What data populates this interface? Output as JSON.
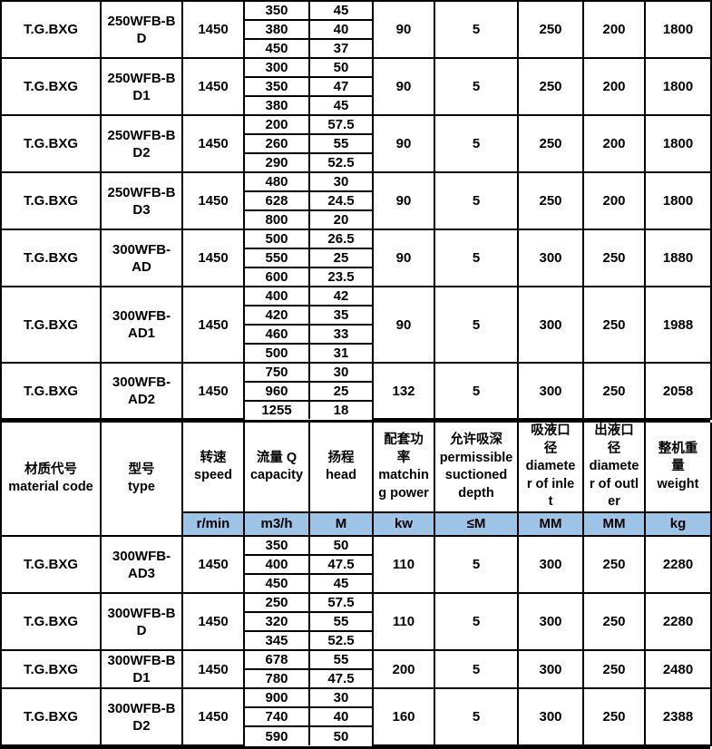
{
  "colors": {
    "unit_row_bg": "#9dc3e6",
    "border": "#000000",
    "cell_bg": "#ffffff",
    "text": "#000000"
  },
  "columns": [
    {
      "key": "material_code",
      "label": "材质代号\nmaterial code",
      "unit": null
    },
    {
      "key": "type",
      "label": "型号\ntype",
      "unit": null
    },
    {
      "key": "speed",
      "label": "转速\nspeed",
      "unit": "r/min"
    },
    {
      "key": "capacity",
      "label": "流量 Q\ncapacity",
      "unit": "m3/h"
    },
    {
      "key": "head",
      "label": "扬程\nhead",
      "unit": "M"
    },
    {
      "key": "power",
      "label": "配套功\n率\nmatchin\ng power",
      "unit": "kw"
    },
    {
      "key": "depth",
      "label": "允许吸深\npermissible\nsuctioned\ndepth",
      "unit": "≤M"
    },
    {
      "key": "inlet",
      "label": "吸液口\n径\ndiamete\nr of inle\nt",
      "unit": "MM"
    },
    {
      "key": "outlet",
      "label": "出液口\n径\ndiamete\nr of outl\ner",
      "unit": "MM"
    },
    {
      "key": "weight",
      "label": "整机重\n量\nweight",
      "unit": "kg"
    }
  ],
  "upper_section": {
    "groups": [
      {
        "material_code": "T.G.BXG",
        "type": "250WFB-B\nD",
        "speed": "1450",
        "points": [
          [
            "350",
            "45"
          ],
          [
            "380",
            "40"
          ],
          [
            "450",
            "37"
          ]
        ],
        "power": "90",
        "depth": "5",
        "inlet": "250",
        "outlet": "200",
        "weight": "1800"
      },
      {
        "material_code": "T.G.BXG",
        "type": "250WFB-B\nD1",
        "speed": "1450",
        "points": [
          [
            "300",
            "50"
          ],
          [
            "350",
            "47"
          ],
          [
            "380",
            "45"
          ]
        ],
        "power": "90",
        "depth": "5",
        "inlet": "250",
        "outlet": "200",
        "weight": "1800"
      },
      {
        "material_code": "T.G.BXG",
        "type": "250WFB-B\nD2",
        "speed": "1450",
        "points": [
          [
            "200",
            "57.5"
          ],
          [
            "260",
            "55"
          ],
          [
            "290",
            "52.5"
          ]
        ],
        "power": "90",
        "depth": "5",
        "inlet": "250",
        "outlet": "200",
        "weight": "1800"
      },
      {
        "material_code": "T.G.BXG",
        "type": "250WFB-B\nD3",
        "speed": "1450",
        "points": [
          [
            "480",
            "30"
          ],
          [
            "628",
            "24.5"
          ],
          [
            "800",
            "20"
          ]
        ],
        "power": "90",
        "depth": "5",
        "inlet": "250",
        "outlet": "200",
        "weight": "1800"
      },
      {
        "material_code": "T.G.BXG",
        "type": "300WFB-\nAD",
        "speed": "1450",
        "points": [
          [
            "500",
            "26.5"
          ],
          [
            "550",
            "25"
          ],
          [
            "600",
            "23.5"
          ]
        ],
        "power": "90",
        "depth": "5",
        "inlet": "300",
        "outlet": "250",
        "weight": "1880"
      },
      {
        "material_code": "T.G.BXG",
        "type": "300WFB-\nAD1",
        "speed": "1450",
        "points": [
          [
            "400",
            "42"
          ],
          [
            "420",
            "35"
          ],
          [
            "460",
            "33"
          ],
          [
            "500",
            "31"
          ]
        ],
        "power": "90",
        "depth": "5",
        "inlet": "300",
        "outlet": "250",
        "weight": "1988"
      },
      {
        "material_code": "T.G.BXG",
        "type": "300WFB-\nAD2",
        "speed": "1450",
        "points": [
          [
            "750",
            "30"
          ],
          [
            "960",
            "25"
          ],
          [
            "1255",
            "18"
          ]
        ],
        "power": "132",
        "depth": "5",
        "inlet": "300",
        "outlet": "250",
        "weight": "2058"
      }
    ]
  },
  "lower_section": {
    "groups": [
      {
        "material_code": "T.G.BXG",
        "type": "300WFB-\nAD3",
        "speed": "1450",
        "points": [
          [
            "350",
            "50"
          ],
          [
            "400",
            "47.5"
          ],
          [
            "450",
            "45"
          ]
        ],
        "power": "110",
        "depth": "5",
        "inlet": "300",
        "outlet": "250",
        "weight": "2280"
      },
      {
        "material_code": "T.G.BXG",
        "type": "300WFB-B\nD",
        "speed": "1450",
        "points": [
          [
            "250",
            "57.5"
          ],
          [
            "320",
            "55"
          ],
          [
            "345",
            "52.5"
          ]
        ],
        "power": "110",
        "depth": "5",
        "inlet": "300",
        "outlet": "250",
        "weight": "2280"
      },
      {
        "material_code": "T.G.BXG",
        "type": "300WFB-B\nD1",
        "speed": "1450",
        "points": [
          [
            "678",
            "55"
          ],
          [
            "780",
            "47.5"
          ]
        ],
        "power": "200",
        "depth": "5",
        "inlet": "300",
        "outlet": "250",
        "weight": "2480"
      },
      {
        "material_code": "T.G.BXG",
        "type": "300WFB-B\nD2",
        "speed": "1450",
        "points": [
          [
            "900",
            "30"
          ],
          [
            "740",
            "40"
          ],
          [
            "590",
            "50"
          ]
        ],
        "power": "160",
        "depth": "5",
        "inlet": "300",
        "outlet": "250",
        "weight": "2388"
      }
    ]
  }
}
